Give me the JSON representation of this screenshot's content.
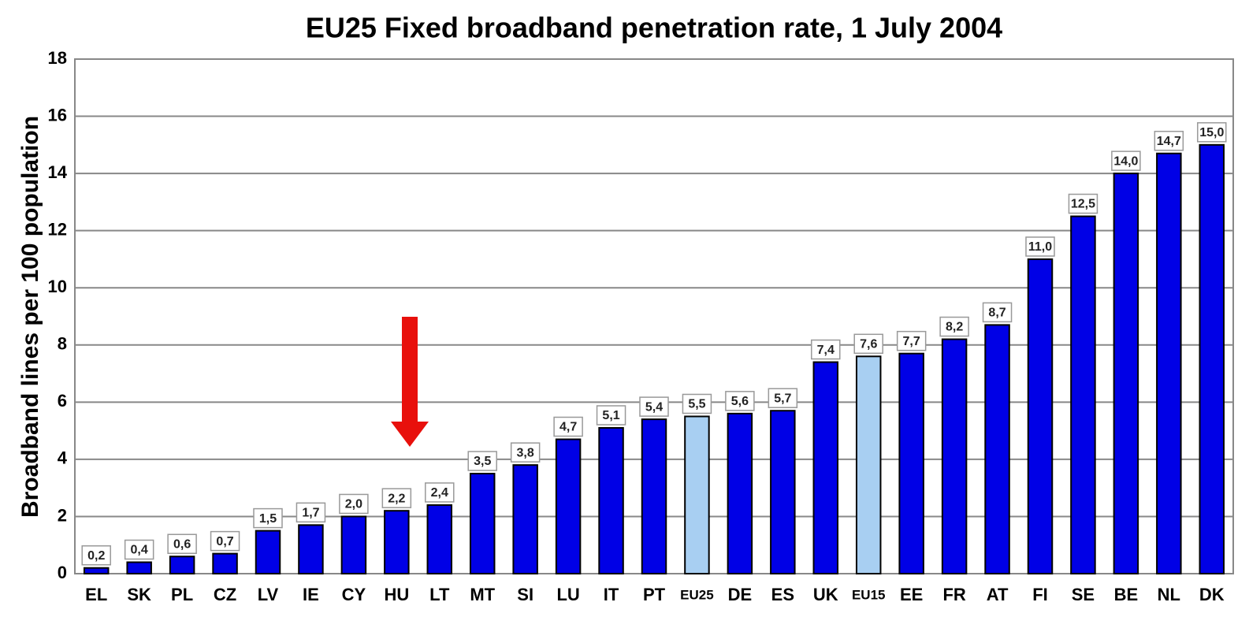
{
  "chart_data": {
    "type": "bar",
    "title": "EU25 Fixed broadband penetration rate, 1 July 2004",
    "y_label": "Broadband lines per 100 population",
    "categories": [
      "EL",
      "SK",
      "PL",
      "CZ",
      "LV",
      "IE",
      "CY",
      "HU",
      "LT",
      "MT",
      "SI",
      "LU",
      "IT",
      "PT",
      "EU25",
      "DE",
      "ES",
      "UK",
      "EU15",
      "EE",
      "FR",
      "AT",
      "FI",
      "SE",
      "BE",
      "NL",
      "DK"
    ],
    "values": [
      0.2,
      0.4,
      0.6,
      0.7,
      1.5,
      1.7,
      2.0,
      2.2,
      2.4,
      3.5,
      3.8,
      4.7,
      5.1,
      5.4,
      5.5,
      5.6,
      5.7,
      7.4,
      7.6,
      7.7,
      8.2,
      8.7,
      11.0,
      12.5,
      14.0,
      14.7,
      15.0
    ],
    "value_labels": [
      "0,2",
      "0,4",
      "0,6",
      "0,7",
      "1,5",
      "1,7",
      "2,0",
      "2,2",
      "2,4",
      "3,5",
      "3,8",
      "4,7",
      "5,1",
      "5,4",
      "5,5",
      "5,6",
      "5,7",
      "7,4",
      "7,6",
      "7,7",
      "8,2",
      "8,7",
      "11,0",
      "12,5",
      "14,0",
      "14,7",
      "15,0"
    ],
    "colors": [
      "#0000e6",
      "#0000e6",
      "#0000e6",
      "#0000e6",
      "#0000e6",
      "#0000e6",
      "#0000e6",
      "#0000e6",
      "#0000e6",
      "#0000e6",
      "#0000e6",
      "#0000e6",
      "#0000e6",
      "#0000e6",
      "#a8cff2",
      "#0000e6",
      "#0000e6",
      "#0000e6",
      "#a8cff2",
      "#0000e6",
      "#0000e6",
      "#0000e6",
      "#0000e6",
      "#0000e6",
      "#0000e6",
      "#0000e6",
      "#0000e6"
    ],
    "ylim": [
      0,
      18
    ],
    "yticks": [
      0,
      2,
      4,
      6,
      8,
      10,
      12,
      14,
      16,
      18
    ],
    "grid": true
  }
}
